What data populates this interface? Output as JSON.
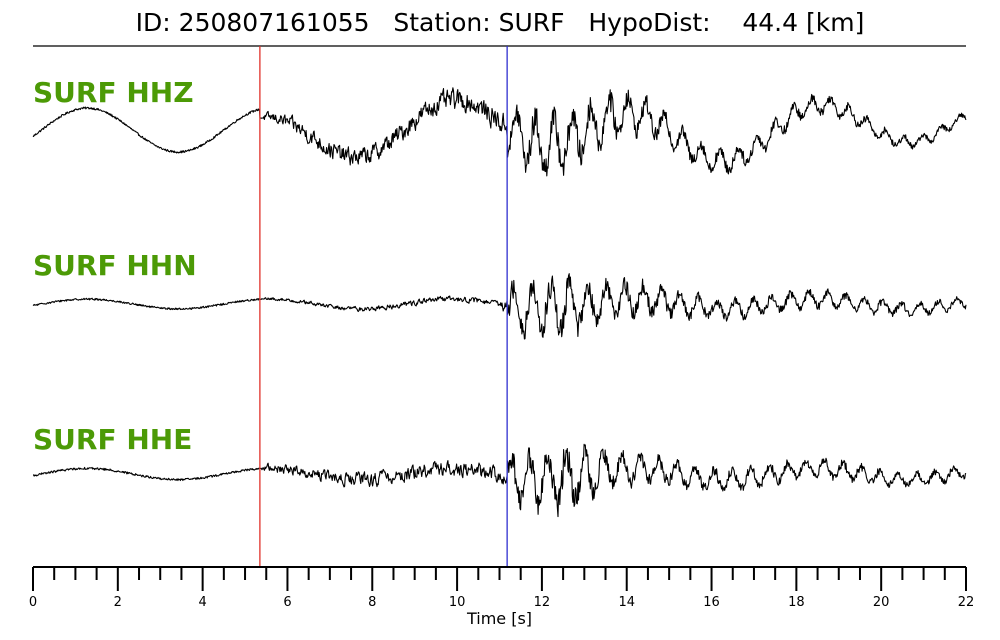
{
  "title": "ID: 250807161055   Station: SURF   HypoDist:    44.4 [km]",
  "chart_data": {
    "type": "line",
    "title": "ID: 250807161055   Station: SURF   HypoDist:    44.4 [km]",
    "xlabel": "Time [s]",
    "xlim": [
      0,
      22
    ],
    "major_ticks": [
      0,
      2,
      4,
      6,
      8,
      10,
      12,
      14,
      16,
      18,
      20,
      22
    ],
    "tick_labels": [
      "0",
      "2",
      "4",
      "6",
      "8",
      "10",
      "12",
      "14",
      "16",
      "18",
      "20",
      "22"
    ],
    "minor_tick_step": 0.5,
    "grid": false,
    "p_pick_time": 5.35,
    "s_pick_time": 11.18,
    "p_pick_color": "#e0312a",
    "s_pick_color": "#2f2fcf",
    "label_color": "#4c9a06",
    "trace_color": "#000000",
    "series": [
      {
        "name": "SURF HHZ",
        "envelope": [
          {
            "t": 0,
            "a": 0.06
          },
          {
            "t": 5.3,
            "a": 0.06
          },
          {
            "t": 5.5,
            "a": 0.3
          },
          {
            "t": 6.5,
            "a": 0.6
          },
          {
            "t": 7.5,
            "a": 0.62
          },
          {
            "t": 9.5,
            "a": 0.7
          },
          {
            "t": 11.0,
            "a": 0.75
          },
          {
            "t": 12.0,
            "a": 1.0
          },
          {
            "t": 13.2,
            "a": 0.85
          },
          {
            "t": 15.0,
            "a": 0.45
          },
          {
            "t": 18.5,
            "a": 0.3
          },
          {
            "t": 22,
            "a": 0.15
          }
        ]
      },
      {
        "name": "SURF HHN",
        "envelope": [
          {
            "t": 0,
            "a": 0.04
          },
          {
            "t": 5.3,
            "a": 0.04
          },
          {
            "t": 5.5,
            "a": 0.1
          },
          {
            "t": 8.0,
            "a": 0.18
          },
          {
            "t": 11.0,
            "a": 0.2
          },
          {
            "t": 11.3,
            "a": 0.95
          },
          {
            "t": 12.5,
            "a": 1.0
          },
          {
            "t": 13.5,
            "a": 0.7
          },
          {
            "t": 16.0,
            "a": 0.38
          },
          {
            "t": 22,
            "a": 0.2
          }
        ]
      },
      {
        "name": "SURF HHE",
        "envelope": [
          {
            "t": 0,
            "a": 0.04
          },
          {
            "t": 5.3,
            "a": 0.04
          },
          {
            "t": 5.5,
            "a": 0.25
          },
          {
            "t": 8.0,
            "a": 0.45
          },
          {
            "t": 11.0,
            "a": 0.45
          },
          {
            "t": 11.3,
            "a": 0.75
          },
          {
            "t": 12.5,
            "a": 1.0
          },
          {
            "t": 13.5,
            "a": 0.6
          },
          {
            "t": 15.0,
            "a": 0.38
          },
          {
            "t": 22,
            "a": 0.2
          }
        ]
      }
    ]
  }
}
